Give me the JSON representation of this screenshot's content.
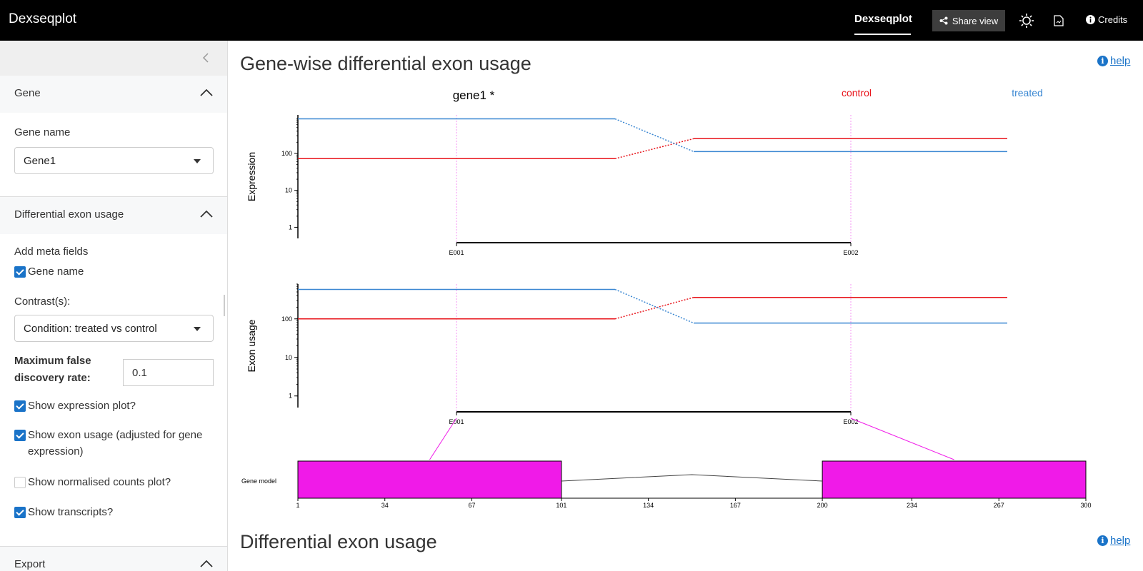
{
  "app": {
    "brand": "Dexseqplot",
    "nav_active": "Dexseqplot",
    "share_label": "Share view",
    "credits_label": "Credits",
    "icons": [
      "share-icon",
      "sun-icon",
      "document-icon",
      "info-icon"
    ]
  },
  "sidebar": {
    "gene_section": {
      "title": "Gene",
      "gene_name_label": "Gene name",
      "gene_name_value": "Gene1"
    },
    "deu_section": {
      "title": "Differential exon usage",
      "meta_fields_label": "Add meta fields",
      "gene_name_checkbox": "Gene name",
      "contrasts_label": "Contrast(s):",
      "contrast_value": "Condition: treated vs control",
      "fdr_label": "Maximum false discovery rate:",
      "fdr_value": "0.1",
      "show_expression": "Show expression plot?",
      "show_exon_usage": "Show exon usage (adjusted for gene expression)",
      "show_normalised": "Show normalised counts plot?",
      "show_transcripts": "Show transcripts?"
    },
    "export_section": {
      "title": "Export"
    }
  },
  "main": {
    "section1_title": "Gene-wise differential exon usage",
    "section2_title": "Differential exon usage",
    "help_label": "help"
  },
  "colors": {
    "control": "#e8141b",
    "treated": "#3a87d2",
    "exon_fill": "#f01ae8",
    "accent": "#1a73c8"
  },
  "chart_data": [
    {
      "type": "line",
      "title": "gene1 *",
      "ylabel": "Expression",
      "yscale": "log",
      "yticks": [
        1,
        10,
        100
      ],
      "x": [
        "E001",
        "E002"
      ],
      "series": [
        {
          "name": "control",
          "values": [
            72,
            250
          ]
        },
        {
          "name": "treated",
          "values": [
            860,
            112
          ]
        }
      ]
    },
    {
      "type": "line",
      "ylabel": "Exon usage",
      "yscale": "log",
      "yticks": [
        1,
        10,
        100
      ],
      "x": [
        "E001",
        "E002"
      ],
      "series": [
        {
          "name": "control",
          "values": [
            100,
            360
          ]
        },
        {
          "name": "treated",
          "values": [
            580,
            78
          ]
        }
      ]
    },
    {
      "type": "gene_model",
      "ylabel": "Gene model",
      "xticks": [
        1,
        34,
        67,
        101,
        134,
        167,
        200,
        234,
        267,
        300
      ],
      "exons": [
        {
          "name": "E001",
          "start": 1,
          "end": 101
        },
        {
          "name": "E002",
          "start": 200,
          "end": 300
        }
      ]
    }
  ]
}
